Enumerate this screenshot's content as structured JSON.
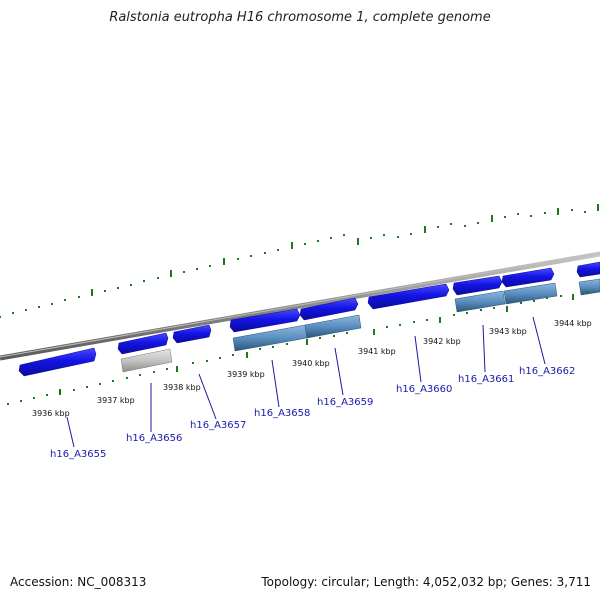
{
  "title": "Ralstonia eutropha H16 chromosome 1, complete genome",
  "footer": {
    "accession": "Accession: NC_008313",
    "summary": "Topology: circular; Length: 4,052,032 bp; Genes: 3,711"
  },
  "colors": {
    "backbone": "#8a8a8a",
    "gene_forward": "#1414e6",
    "gene_gray": "#bdbdbd",
    "gene_steel": "#4f86b8",
    "tick": "#1b7a1b",
    "label_line": "#1a1aa8"
  },
  "scale_labels": [
    "3936 kbp",
    "3937 kbp",
    "3938 kbp",
    "3939 kbp",
    "3940 kbp",
    "3941 kbp",
    "3942 kbp",
    "3943 kbp",
    "3944 kbp"
  ],
  "gene_labels": [
    "h16_A3655",
    "h16_A3656",
    "h16_A3657",
    "h16_A3658",
    "h16_A3659",
    "h16_A3660",
    "h16_A3661",
    "h16_A3662"
  ]
}
